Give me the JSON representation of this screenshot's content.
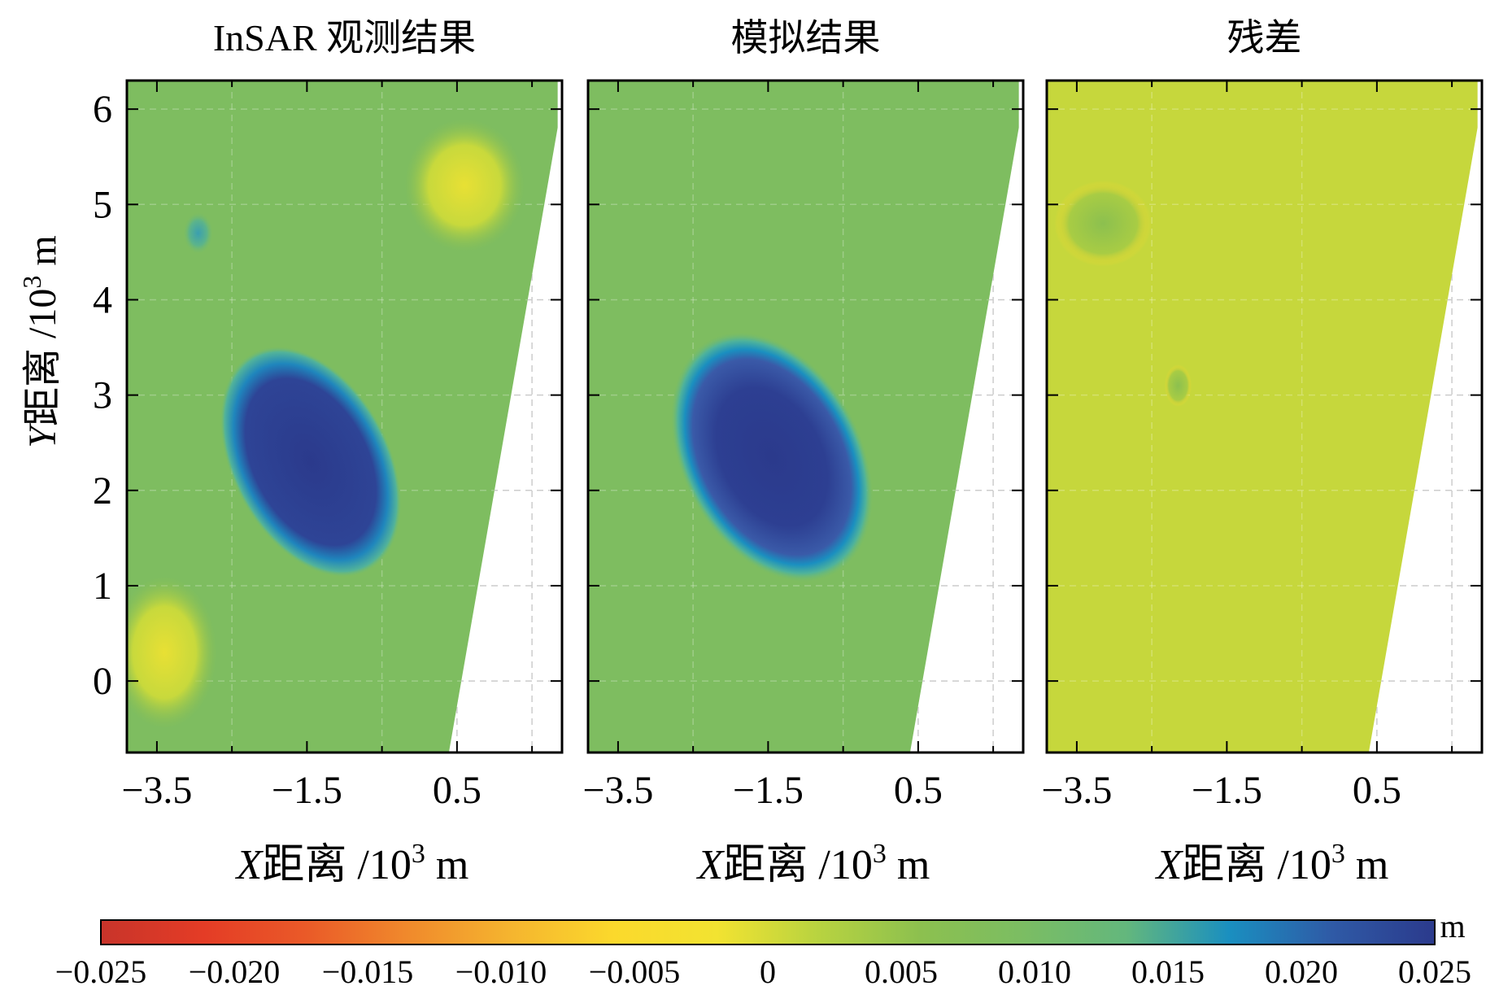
{
  "chart_data": {
    "type": "heatmap",
    "panels": [
      {
        "title": "InSAR 观测结果",
        "xlabel_var": "X",
        "xlabel_rest": "距离 /10",
        "ylabel_var": "",
        "ylabel_rest": "",
        "unit_exp": "3",
        "unit_m": " m",
        "xticks": [
          -3.5,
          -1.5,
          0.5
        ],
        "yticks": [
          0,
          1,
          2,
          3,
          4,
          5,
          6
        ],
        "xlim": [
          -3.9,
          1.9
        ],
        "ylim": [
          -0.75,
          6.3
        ],
        "features": [
          {
            "kind": "blob",
            "cx": -1.45,
            "cy": 2.3,
            "rx": 1.05,
            "ry": 1.3,
            "value": 0.023
          },
          {
            "kind": "blob",
            "cx": -2.95,
            "cy": 4.7,
            "rx": 0.2,
            "ry": 0.22,
            "value": 0.016
          },
          {
            "kind": "patch",
            "cx": -3.4,
            "cy": 0.3,
            "rx": 0.7,
            "ry": 0.8,
            "value": 0.003
          },
          {
            "kind": "patch",
            "cx": 0.6,
            "cy": 5.2,
            "rx": 0.8,
            "ry": 0.7,
            "value": 0.006
          }
        ],
        "background_value": 0.009
      },
      {
        "title": "模拟结果",
        "xlabel_var": "X",
        "xlabel_rest": "距离 /10",
        "unit_exp": "3",
        "unit_m": " m",
        "xticks": [
          -3.5,
          -1.5,
          0.5
        ],
        "yticks": [
          0,
          1,
          2,
          3,
          4,
          5,
          6
        ],
        "xlim": [
          -3.9,
          1.9
        ],
        "ylim": [
          -0.75,
          6.3
        ],
        "features": [
          {
            "kind": "ellipse",
            "cx": -1.45,
            "cy": 2.35,
            "rx": 1.2,
            "ry": 1.4,
            "value": 0.024
          }
        ],
        "background_value": 0.009
      },
      {
        "title": "残差",
        "xlabel_var": "X",
        "xlabel_rest": "距离 /10",
        "unit_exp": "3",
        "unit_m": " m",
        "xticks": [
          -3.5,
          -1.5,
          0.5
        ],
        "yticks": [
          0,
          1,
          2,
          3,
          4,
          5,
          6
        ],
        "xlim": [
          -3.9,
          1.9
        ],
        "ylim": [
          -0.75,
          6.3
        ],
        "features": [
          {
            "kind": "blob",
            "cx": -3.15,
            "cy": 4.8,
            "rx": 0.65,
            "ry": 0.45,
            "value": 0.009
          },
          {
            "kind": "blob",
            "cx": -2.15,
            "cy": 3.1,
            "rx": 0.18,
            "ry": 0.22,
            "value": 0.006
          }
        ],
        "background_value": 0.001
      }
    ],
    "ylabel": {
      "var": "Y",
      "rest": "距离 /10",
      "exp": "3",
      "unit": " m"
    },
    "colorbar": {
      "range": [
        -0.025,
        0.025
      ],
      "ticks": [
        "−0.025",
        "−0.020",
        "−0.015",
        "−0.010",
        "−0.005",
        "0",
        "0.005",
        "0.010",
        "0.015",
        "0.020",
        "0.025"
      ],
      "unit": "m",
      "colors": [
        "#c8342a",
        "#e43c26",
        "#ea5a28",
        "#f08a2c",
        "#f5b52f",
        "#fbd92c",
        "#f2e331",
        "#b8d340",
        "#8cc04f",
        "#7bbd63",
        "#63b77d",
        "#1a8fc0",
        "#2f5aa6",
        "#2b3a8c"
      ]
    }
  }
}
